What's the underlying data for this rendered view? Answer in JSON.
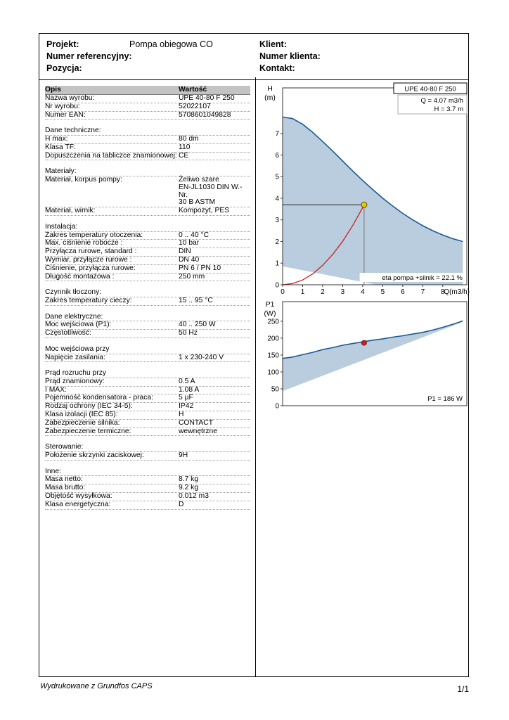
{
  "header": {
    "left": [
      {
        "label": "Projekt:",
        "value": "Pompa obiegowa CO"
      },
      {
        "label": "Numer referencyjny:",
        "value": ""
      },
      {
        "label": "Pozycja:",
        "value": ""
      }
    ],
    "right": [
      {
        "label": "Klient:",
        "value": ""
      },
      {
        "label": "Numer klienta:",
        "value": ""
      },
      {
        "label": "Kontakt:",
        "value": ""
      }
    ]
  },
  "table": {
    "rows": [
      {
        "h": true,
        "label": "Opis",
        "value": "Wartość"
      },
      {
        "label": "Nazwa wyrobu:",
        "value": "UPE 40-80 F 250"
      },
      {
        "label": "Nr wyrobu:",
        "value": "52022107"
      },
      {
        "label": "Numer EAN:",
        "value": "5708601049828"
      },
      {
        "label": "",
        "value": ""
      },
      {
        "label": "Dane techniczne:",
        "value": ""
      },
      {
        "label": "H max:",
        "value": "80 dm"
      },
      {
        "label": "Klasa TF:",
        "value": "110"
      },
      {
        "label": "Dopuszczenia na tabliczce znamionowej:",
        "value": "CE"
      },
      {
        "label": "",
        "value": ""
      },
      {
        "label": "Materiały:",
        "value": ""
      },
      {
        "label": "Materiał, korpus pompy:",
        "value": "Żeliwo szare\nEN-JL1030 DIN W.-Nr.\n30 B ASTM"
      },
      {
        "label": "Materiał, wirnik:",
        "value": "Kompozyt, PES"
      },
      {
        "label": "",
        "value": ""
      },
      {
        "label": "Instalacja:",
        "value": ""
      },
      {
        "label": "Zakres temperatury otoczenia:",
        "value": "0 .. 40 °C"
      },
      {
        "label": "Max. ciśnienie robocze :",
        "value": "10 bar"
      },
      {
        "label": "Przyłącza rurowe, standard :",
        "value": "DIN"
      },
      {
        "label": "Wymiar, przyłącze rurowe :",
        "value": "DN 40"
      },
      {
        "label": "Ciśnienie, przyłącza rurowe:",
        "value": "PN 6 / PN 10"
      },
      {
        "label": "Długość montażowa :",
        "value": "250 mm"
      },
      {
        "label": "",
        "value": ""
      },
      {
        "label": "Czynnik tłoczony:",
        "value": ""
      },
      {
        "label": "Zakres temperatury cieczy:",
        "value": "15 .. 95 °C"
      },
      {
        "label": "",
        "value": ""
      },
      {
        "label": "Dane elektryczne:",
        "value": ""
      },
      {
        "label": "Moc wejściowa (P1):",
        "value": "40 .. 250 W"
      },
      {
        "label": "Częstotliwość:",
        "value": "50 Hz"
      },
      {
        "label": "",
        "value": ""
      },
      {
        "label": "Moc wejściowa przy",
        "value": ""
      },
      {
        "label": "Napięcie zasilania:",
        "value": "1 x 230-240 V"
      },
      {
        "label": "",
        "value": ""
      },
      {
        "label": "Prąd rozruchu przy",
        "value": ""
      },
      {
        "label": "Prąd znamionowy:",
        "value": "0.5 A"
      },
      {
        "label": "I MAX:",
        "value": "1.08 A"
      },
      {
        "label": "Pojemność kondensatora - praca:",
        "value": "5 µF"
      },
      {
        "label": "Rodzaj ochrony (IEC 34-5):",
        "value": "IP42"
      },
      {
        "label": "Klasa izolacji (IEC 85):",
        "value": "H"
      },
      {
        "label": "Zabezpieczenie silnika:",
        "value": "CONTACT"
      },
      {
        "label": "Zabezpieczenie termiczne:",
        "value": "wewnętrzne"
      },
      {
        "label": "",
        "value": ""
      },
      {
        "label": "Sterowanie:",
        "value": ""
      },
      {
        "label": "Położenie skrzynki zaciskowej:",
        "value": "9H"
      },
      {
        "label": "",
        "value": ""
      },
      {
        "label": "Inne:",
        "value": ""
      },
      {
        "label": "Masa netto:",
        "value": "8.7 kg"
      },
      {
        "label": "Masa brutto:",
        "value": "9.2 kg"
      },
      {
        "label": "Objętość wysyłkowa:",
        "value": "0.012 m3"
      },
      {
        "label": "Klasa energetyczna:",
        "value": "D"
      }
    ]
  },
  "chart_data": [
    {
      "type": "area",
      "title": "UPE 40-80 F 250",
      "ylabel": "H (m)",
      "xlabel": "Q(m3/h)",
      "xlim": [
        0,
        9.2
      ],
      "ylim": [
        0,
        9.1
      ],
      "xticks": [
        0,
        1,
        2,
        3,
        4,
        5,
        6,
        7,
        8
      ],
      "yticks": [
        0,
        1,
        2,
        3,
        4,
        5,
        6,
        7
      ],
      "area_color": "#b9cdde",
      "area_lower": [
        [
          9,
          0
        ],
        [
          4.7,
          0
        ],
        [
          0,
          0.85
        ]
      ],
      "series": [
        {
          "name": "max-speed-curve",
          "color": "#1a5a96",
          "width": 1.6,
          "x": [
            0,
            0.5,
            1,
            1.5,
            2,
            2.5,
            3,
            3.5,
            4,
            4.5,
            5,
            5.5,
            6,
            6.5,
            7,
            7.5,
            8,
            8.5,
            9
          ],
          "y": [
            7.75,
            7.68,
            7.42,
            7.05,
            6.62,
            6.18,
            5.72,
            5.26,
            4.82,
            4.4,
            4.0,
            3.64,
            3.3,
            3.0,
            2.73,
            2.5,
            2.3,
            2.13,
            2.0
          ]
        },
        {
          "name": "system-curve",
          "color": "#cc2020",
          "width": 1.3,
          "x": [
            0,
            0.5,
            1,
            1.5,
            2,
            2.5,
            3,
            3.5,
            4,
            4.07
          ],
          "y": [
            0,
            0.06,
            0.22,
            0.5,
            0.9,
            1.4,
            2.01,
            2.74,
            3.57,
            3.7
          ]
        }
      ],
      "guide_lines": [
        {
          "name": "head-guide-line",
          "color": "#222222",
          "width": 1,
          "pts": [
            [
              0,
              3.7
            ],
            [
              4.07,
              3.7
            ]
          ]
        },
        {
          "name": "flow-guide-line",
          "color": "#777777",
          "width": 1,
          "pts": [
            [
              4.07,
              3.7
            ],
            [
              4.07,
              0
            ]
          ]
        }
      ],
      "points": [
        {
          "name": "duty-point",
          "x": 4.07,
          "y": 3.7,
          "r": 4,
          "fill": "#f5c400",
          "stroke": "#555500"
        }
      ],
      "annotations": [
        "Q = 4.07 m3/h",
        "H = 3.7 m"
      ],
      "corner_label": "eta pompa +silnik = 22.1 %"
    },
    {
      "type": "area",
      "ylabel": "P1 (W)",
      "xlim": [
        0,
        9.2
      ],
      "ylim": [
        0,
        308
      ],
      "xticks": [],
      "yticks": [
        0,
        50,
        100,
        150,
        200,
        250
      ],
      "area_color": "#b9cdde",
      "area_lower": [
        [
          9,
          248
        ],
        [
          0,
          43
        ]
      ],
      "series": [
        {
          "name": "p1-max-curve",
          "color": "#1a5a96",
          "width": 1.6,
          "x": [
            0,
            0.5,
            1,
            1.5,
            2,
            2.5,
            3,
            3.5,
            4,
            4.5,
            5,
            5.5,
            6,
            6.5,
            7,
            7.5,
            8,
            8.5,
            9
          ],
          "y": [
            140,
            144,
            151,
            158,
            166,
            172,
            179,
            184,
            189,
            194,
            198,
            203,
            207,
            212,
            217,
            224,
            232,
            241,
            251
          ]
        }
      ],
      "points": [
        {
          "name": "p1-duty-point",
          "x": 4.07,
          "y": 186,
          "r": 3.5,
          "fill": "#cc2020",
          "stroke": "#881010"
        }
      ],
      "corner_label": "P1 = 186 W"
    }
  ],
  "footer": {
    "left": "Wydrukowane z Grundfos CAPS",
    "right": "1/1"
  }
}
